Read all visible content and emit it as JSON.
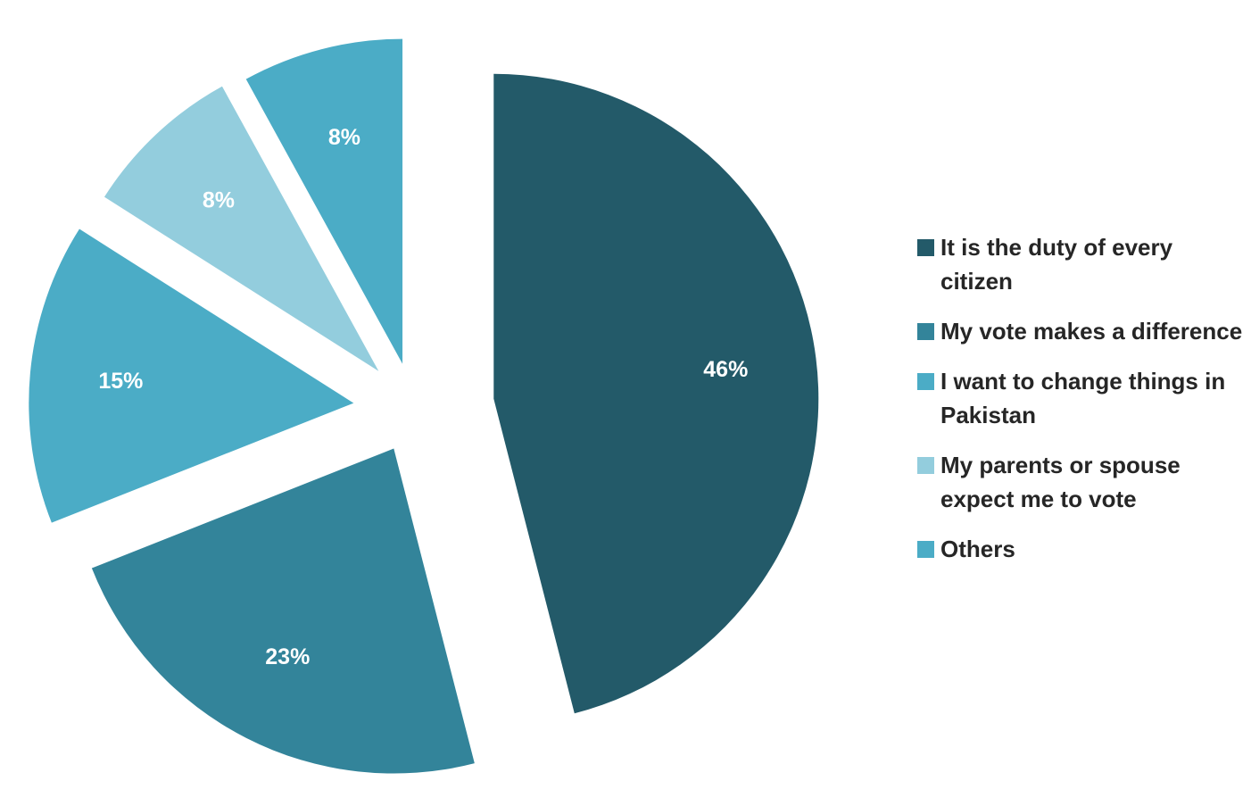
{
  "chart_data": {
    "type": "pie",
    "title": "",
    "exploded": true,
    "legend": "right",
    "slices": [
      {
        "label": "It is the duty of every citizen",
        "value": 46,
        "display": "46%",
        "color": "#235a69"
      },
      {
        "label": "My vote makes a difference",
        "value": 23,
        "display": "23%",
        "color": "#33849a"
      },
      {
        "label": "I want to change things in Pakistan",
        "value": 15,
        "display": "15%",
        "color": "#4bacc6"
      },
      {
        "label": "My parents or spouse expect me to vote",
        "value": 8,
        "display": "8%",
        "color": "#93cddd"
      },
      {
        "label": "Others",
        "value": 8,
        "display": "8%",
        "color": "#4bacc6"
      }
    ]
  }
}
